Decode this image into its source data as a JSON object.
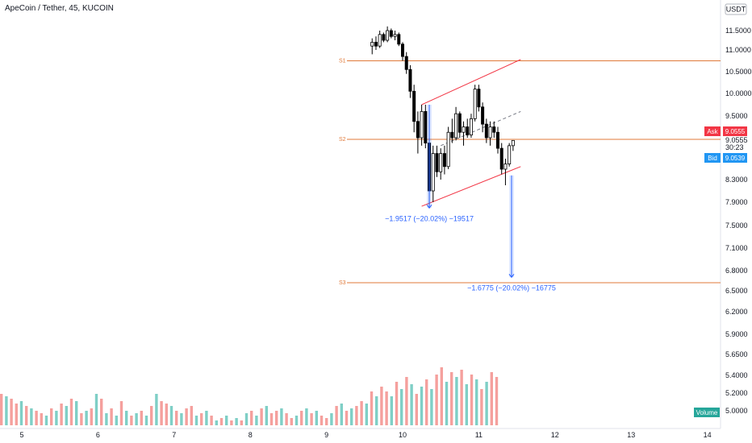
{
  "header": {
    "title": "ApeCoin / Tether, 45, KUCOIN"
  },
  "price_scale": {
    "currency": "USDT"
  },
  "quote": {
    "ask_label": "Ask",
    "ask_value": "9.0555",
    "last_value": "9.0555",
    "countdown": "30:23",
    "bid_label": "Bid",
    "bid_value": "9.0539"
  },
  "volume_label": "Volume",
  "colors": {
    "up": "#26a69a",
    "down": "#ef5350",
    "level": "#e07a3a",
    "channel": "#f23645",
    "measure": "#2962ff",
    "ask": "#f23645",
    "bid": "#2196f3"
  },
  "chart_data": {
    "type": "candlestick",
    "y_ticks": [
      "11.5000",
      "11.0000",
      "10.5000",
      "10.0000",
      "9.5000",
      "9.0555",
      "8.3000",
      "7.9000",
      "7.5000",
      "7.1000",
      "6.8000",
      "6.5000",
      "6.2000",
      "5.9000",
      "5.6500",
      "5.4000",
      "5.2000",
      "5.0000"
    ],
    "x_ticks": [
      "5",
      "6",
      "7",
      "8",
      "9",
      "10",
      "11",
      "12",
      "13",
      "14"
    ],
    "levels": [
      {
        "label": "S1",
        "price": 10.75
      },
      {
        "label": "S2",
        "price": 9.07
      },
      {
        "label": "S3",
        "price": 6.62
      }
    ],
    "channel": {
      "upper": [
        [
          10.25,
          9.75
        ],
        [
          11.55,
          10.78
        ]
      ],
      "lower": [
        [
          10.25,
          7.83
        ],
        [
          11.55,
          8.55
        ]
      ],
      "mid": [
        [
          10.5,
          8.95
        ],
        [
          11.55,
          9.6
        ]
      ]
    },
    "annotations": [
      {
        "text": "−1.9517 (−20.02%) −19517",
        "day": 10.35,
        "from": 9.75,
        "to": 7.8
      },
      {
        "text": "−1.6775 (−20.02%) −16775",
        "day": 11.43,
        "from": 8.38,
        "to": 6.7
      }
    ],
    "candles": [
      [
        9.6,
        11.1,
        11.3,
        10.9,
        11.2
      ],
      [
        9.65,
        11.2,
        11.35,
        11.0,
        11.1
      ],
      [
        9.7,
        11.1,
        11.5,
        11.05,
        11.4
      ],
      [
        9.75,
        11.4,
        11.45,
        11.2,
        11.25
      ],
      [
        9.8,
        11.25,
        11.6,
        11.2,
        11.5
      ],
      [
        9.85,
        11.5,
        11.55,
        11.3,
        11.35
      ],
      [
        9.9,
        11.35,
        11.5,
        11.25,
        11.4
      ],
      [
        9.95,
        11.4,
        11.45,
        11.1,
        11.15
      ],
      [
        10.0,
        11.15,
        11.2,
        10.75,
        10.85
      ],
      [
        10.05,
        10.85,
        10.95,
        10.45,
        10.55
      ],
      [
        10.1,
        10.55,
        10.65,
        9.9,
        10.05
      ],
      [
        10.15,
        10.05,
        10.2,
        9.2,
        9.4
      ],
      [
        10.2,
        9.4,
        9.6,
        8.8,
        9.1
      ],
      [
        10.25,
        9.1,
        9.75,
        8.95,
        9.6
      ],
      [
        10.3,
        9.6,
        9.75,
        8.9,
        9.0
      ],
      [
        10.35,
        9.0,
        9.1,
        7.8,
        8.1
      ],
      [
        10.4,
        8.1,
        8.95,
        7.9,
        8.8
      ],
      [
        10.45,
        8.8,
        8.95,
        8.35,
        8.45
      ],
      [
        10.5,
        8.45,
        8.9,
        8.3,
        8.8
      ],
      [
        10.55,
        8.8,
        8.95,
        8.4,
        8.55
      ],
      [
        10.6,
        8.55,
        9.3,
        8.5,
        9.2
      ],
      [
        10.65,
        9.2,
        9.45,
        9.0,
        9.1
      ],
      [
        10.7,
        9.1,
        9.7,
        9.05,
        9.55
      ],
      [
        10.75,
        9.55,
        9.6,
        9.1,
        9.2
      ],
      [
        10.8,
        9.2,
        9.4,
        8.95,
        9.3
      ],
      [
        10.85,
        9.3,
        9.45,
        9.1,
        9.15
      ],
      [
        10.9,
        9.15,
        9.55,
        9.1,
        9.45
      ],
      [
        10.95,
        9.45,
        10.2,
        9.4,
        10.1
      ],
      [
        11.0,
        10.1,
        10.2,
        9.6,
        9.7
      ],
      [
        11.05,
        9.7,
        9.8,
        9.2,
        9.35
      ],
      [
        11.1,
        9.35,
        9.45,
        9.0,
        9.1
      ],
      [
        11.15,
        9.1,
        9.4,
        8.95,
        9.3
      ],
      [
        11.2,
        9.3,
        9.4,
        9.1,
        9.2
      ],
      [
        11.25,
        9.2,
        9.3,
        8.8,
        8.9
      ],
      [
        11.3,
        8.9,
        9.0,
        8.4,
        8.5
      ],
      [
        11.35,
        8.5,
        8.7,
        8.2,
        8.6
      ],
      [
        11.4,
        8.6,
        9.0,
        8.55,
        8.95
      ],
      [
        11.45,
        8.95,
        9.05,
        8.85,
        9.05
      ]
    ],
    "volumes": [
      [
        "d",
        4.9
      ],
      [
        "u",
        4.8
      ],
      [
        "d",
        4.7
      ],
      [
        "d",
        4.5
      ],
      [
        "u",
        4.6
      ],
      [
        "d",
        4.4
      ],
      [
        "u",
        4.3
      ],
      [
        "d",
        4.2
      ],
      [
        "d",
        4.1
      ],
      [
        "u",
        4.0
      ],
      [
        "d",
        4.3
      ],
      [
        "u",
        4.2
      ],
      [
        "d",
        4.5
      ],
      [
        "u",
        4.4
      ],
      [
        "d",
        4.7
      ],
      [
        "u",
        4.6
      ],
      [
        "d",
        4.1
      ],
      [
        "u",
        4.2
      ],
      [
        "d",
        4.3
      ],
      [
        "u",
        4.9
      ],
      [
        "d",
        4.7
      ],
      [
        "u",
        4.1
      ],
      [
        "d",
        4.3
      ],
      [
        "u",
        4.0
      ],
      [
        "d",
        4.6
      ],
      [
        "u",
        4.2
      ],
      [
        "d",
        4.0
      ],
      [
        "u",
        4.1
      ],
      [
        "d",
        4.2
      ],
      [
        "u",
        4.0
      ],
      [
        "d",
        4.4
      ],
      [
        "u",
        4.9
      ],
      [
        "d",
        4.6
      ],
      [
        "d",
        4.5
      ],
      [
        "u",
        4.4
      ],
      [
        "d",
        4.2
      ],
      [
        "u",
        4.1
      ],
      [
        "d",
        4.3
      ],
      [
        "d",
        4.4
      ],
      [
        "u",
        4.0
      ],
      [
        "d",
        4.1
      ],
      [
        "u",
        4.2
      ],
      [
        "d",
        4.0
      ],
      [
        "u",
        3.8
      ],
      [
        "d",
        3.9
      ],
      [
        "u",
        4.0
      ],
      [
        "d",
        3.8
      ],
      [
        "u",
        3.9
      ],
      [
        "d",
        3.8
      ],
      [
        "u",
        4.1
      ],
      [
        "d",
        4.2
      ],
      [
        "u",
        4.0
      ],
      [
        "d",
        4.3
      ],
      [
        "u",
        4.4
      ],
      [
        "d",
        4.1
      ],
      [
        "d",
        4.2
      ],
      [
        "u",
        4.3
      ],
      [
        "d",
        4.1
      ],
      [
        "d",
        3.9
      ],
      [
        "u",
        4.0
      ],
      [
        "d",
        4.2
      ],
      [
        "u",
        4.3
      ],
      [
        "d",
        4.1
      ],
      [
        "u",
        4.2
      ],
      [
        "d",
        4.0
      ],
      [
        "d",
        3.9
      ],
      [
        "u",
        4.1
      ],
      [
        "d",
        4.4
      ],
      [
        "u",
        4.5
      ],
      [
        "d",
        4.2
      ],
      [
        "u",
        4.3
      ],
      [
        "d",
        4.4
      ],
      [
        "d",
        4.6
      ],
      [
        "u",
        4.5
      ],
      [
        "d",
        5.0
      ],
      [
        "u",
        4.8
      ],
      [
        "d",
        5.2
      ],
      [
        "d",
        5.0
      ],
      [
        "u",
        4.8
      ],
      [
        "d",
        5.4
      ],
      [
        "u",
        5.1
      ],
      [
        "d",
        5.6
      ],
      [
        "u",
        5.3
      ],
      [
        "d",
        4.9
      ],
      [
        "u",
        5.2
      ],
      [
        "d",
        5.5
      ],
      [
        "u",
        5.1
      ],
      [
        "d",
        5.7
      ],
      [
        "d",
        6.0
      ],
      [
        "u",
        5.4
      ],
      [
        "d",
        5.8
      ],
      [
        "u",
        5.6
      ],
      [
        "d",
        5.9
      ],
      [
        "u",
        5.3
      ],
      [
        "d",
        5.7
      ],
      [
        "u",
        5.5
      ],
      [
        "d",
        5.1
      ],
      [
        "u",
        5.4
      ],
      [
        "d",
        5.8
      ],
      [
        "d",
        5.6
      ]
    ]
  }
}
